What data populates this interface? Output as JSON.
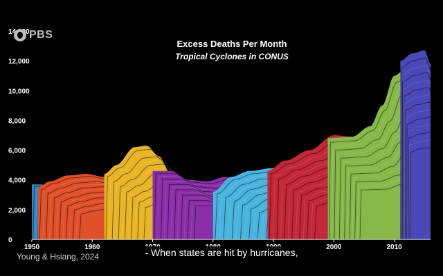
{
  "chart_data": {
    "type": "area",
    "title": "Excess Deaths Per Month",
    "subtitle": "Tropical Cyclones in CONUS",
    "xlabel": "",
    "ylabel": "",
    "xlim": [
      1950,
      2016
    ],
    "ylim": [
      0,
      14000
    ],
    "y_ticks": [
      "0",
      "2,000",
      "4,000",
      "6,000",
      "8,000",
      "10,000",
      "12,000",
      "14,000"
    ],
    "x_ticks": [
      "1950",
      "1960",
      "1970",
      "1980",
      "1990",
      "2000",
      "2010"
    ],
    "grid": false,
    "series": [
      {
        "color": "#2f86c8",
        "x": [
          1950,
          1951,
          1955,
          1958,
          1961,
          1964,
          1966
        ],
        "y": [
          3700,
          3700,
          3500,
          3000,
          1800,
          500,
          0
        ]
      },
      {
        "color": "#e0502a",
        "x": [
          1951,
          1953,
          1956,
          1959,
          1962,
          1965,
          1968,
          1971,
          1973
        ],
        "y": [
          3500,
          3900,
          4300,
          4400,
          4200,
          3500,
          2200,
          700,
          0
        ]
      },
      {
        "color": "#e8b526",
        "x": [
          1962,
          1964,
          1967,
          1969,
          1971,
          1973,
          1976,
          1979,
          1981,
          1983
        ],
        "y": [
          4400,
          5000,
          6200,
          6300,
          5600,
          4400,
          2800,
          1600,
          700,
          0
        ]
      },
      {
        "color": "#8a2fa8",
        "x": [
          1970,
          1973,
          1976,
          1979,
          1982,
          1985,
          1988,
          1990,
          1992
        ],
        "y": [
          4600,
          4600,
          4000,
          3900,
          4200,
          3800,
          2500,
          1000,
          0
        ]
      },
      {
        "color": "#49b4e0",
        "x": [
          1980,
          1983,
          1986,
          1990,
          1993,
          1996,
          1999,
          2002,
          2005,
          2008
        ],
        "y": [
          3200,
          4200,
          4600,
          4800,
          5000,
          4700,
          3500,
          2000,
          800,
          0
        ]
      },
      {
        "color": "#c2283a",
        "x": [
          1989,
          1992,
          1996,
          2000,
          2003,
          2006,
          2009,
          2011,
          2014
        ],
        "y": [
          4600,
          5300,
          6000,
          7000,
          6900,
          6600,
          4500,
          1500,
          0
        ]
      },
      {
        "color": "#86b94a",
        "x": [
          1999,
          2003,
          2006,
          2008,
          2010,
          2012,
          2014,
          2016
        ],
        "y": [
          6800,
          6900,
          7600,
          9000,
          11000,
          11500,
          10000,
          2000
        ]
      },
      {
        "color": "#4b49b8",
        "x": [
          2011,
          2013,
          2015,
          2016
        ],
        "y": [
          12000,
          12500,
          12700,
          11800
        ]
      }
    ]
  },
  "source": "Young & Hsiang, 2024",
  "caption": "- When states are hit by hurricanes,",
  "logo": {
    "text": "PBS",
    "icon": "pbs-logo-icon"
  }
}
